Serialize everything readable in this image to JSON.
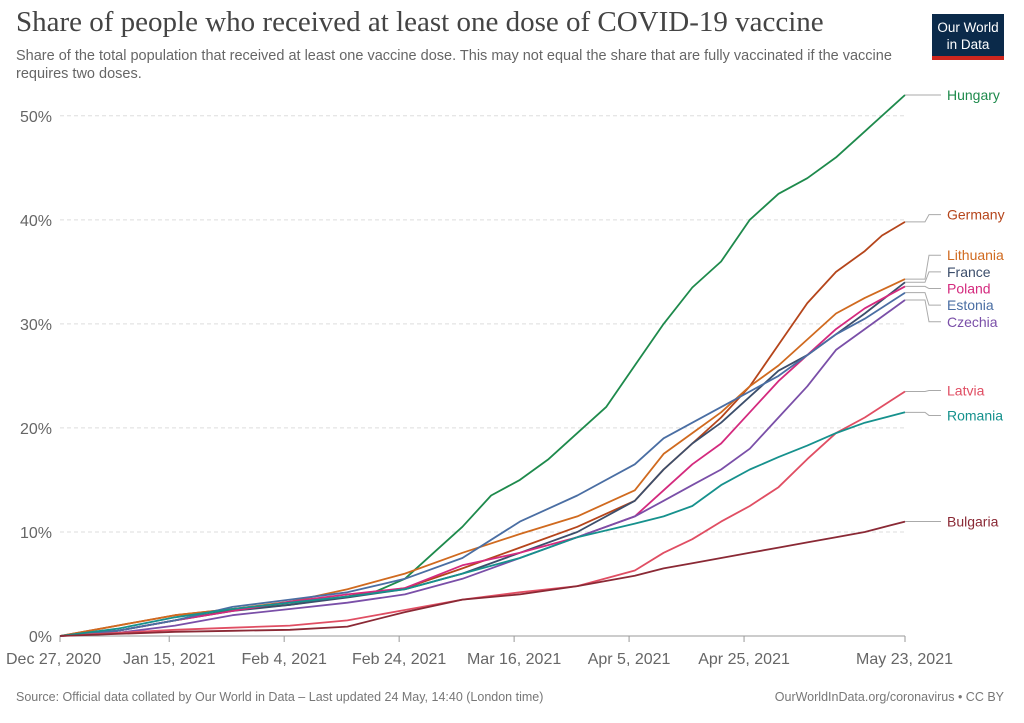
{
  "header": {
    "title": "Share of people who received at least one dose of COVID-19 vaccine",
    "subtitle": "Share of the total population that received at least one vaccine dose. This may not equal the share that are fully vaccinated if the vaccine requires two doses.",
    "logo_line1": "Our World",
    "logo_line2": "in Data"
  },
  "footer": {
    "source": "Source: Official data collated by Our World in Data – Last updated 24 May, 14:40 (London time)",
    "credit": "OurWorldInData.org/coronavirus • CC BY"
  },
  "chart_data": {
    "type": "line",
    "x_tick_labels": [
      "Dec 27, 2020",
      "Jan 15, 2021",
      "Feb 4, 2021",
      "Feb 24, 2021",
      "Mar 16, 2021",
      "Apr 5, 2021",
      "Apr 25, 2021",
      "May 23, 2021"
    ],
    "x_tick_days": [
      0,
      19,
      39,
      59,
      79,
      99,
      119,
      147
    ],
    "y_tick_labels": [
      "0%",
      "10%",
      "20%",
      "30%",
      "40%",
      "50%"
    ],
    "y_tick_values": [
      0,
      10,
      20,
      30,
      40,
      50
    ],
    "ylim": [
      0,
      52
    ],
    "grid": "horizontal dashed",
    "legend": "labels at line ends (right)",
    "series": [
      {
        "name": "Hungary",
        "color": "#1e8a4c",
        "label_y": 52,
        "x": [
          0,
          10,
          20,
          30,
          40,
          50,
          55,
          60,
          65,
          70,
          75,
          80,
          85,
          90,
          95,
          100,
          105,
          110,
          115,
          120,
          125,
          130,
          135,
          140,
          147
        ],
        "values": [
          0,
          0.5,
          1.5,
          2.5,
          3.0,
          3.8,
          4.3,
          5.5,
          8.0,
          10.5,
          13.5,
          15.0,
          17.0,
          19.5,
          22.0,
          26.0,
          30.0,
          33.5,
          36.0,
          40.0,
          42.5,
          44.0,
          46.0,
          48.5,
          52.0
        ]
      },
      {
        "name": "Germany",
        "color": "#b5451b",
        "label_y": 40.5,
        "x": [
          0,
          10,
          20,
          30,
          40,
          50,
          60,
          70,
          80,
          90,
          100,
          105,
          110,
          115,
          120,
          125,
          130,
          135,
          140,
          143,
          147
        ],
        "values": [
          0,
          1.0,
          2.0,
          2.6,
          3.2,
          3.8,
          4.6,
          6.5,
          8.5,
          10.5,
          13.0,
          16.0,
          18.5,
          21.0,
          24.0,
          28.0,
          32.0,
          35.0,
          37.0,
          38.5,
          39.8
        ]
      },
      {
        "name": "Lithuania",
        "color": "#d06a1f",
        "label_y": 36.6,
        "x": [
          0,
          10,
          20,
          30,
          40,
          50,
          60,
          70,
          80,
          90,
          100,
          105,
          110,
          115,
          120,
          125,
          130,
          135,
          140,
          147
        ],
        "values": [
          0,
          1.0,
          2.0,
          2.6,
          3.3,
          4.5,
          6.0,
          8.0,
          9.8,
          11.5,
          14.0,
          17.5,
          19.5,
          21.5,
          24.0,
          26.0,
          28.5,
          31.0,
          32.5,
          34.3
        ]
      },
      {
        "name": "France",
        "color": "#3c4e6b",
        "label_y": 35.0,
        "x": [
          0,
          10,
          20,
          30,
          40,
          50,
          60,
          70,
          80,
          90,
          100,
          105,
          110,
          115,
          120,
          125,
          130,
          135,
          140,
          147
        ],
        "values": [
          0,
          0.5,
          1.5,
          2.4,
          3.0,
          3.7,
          4.5,
          6.0,
          8.0,
          10.0,
          13.0,
          16.0,
          18.5,
          20.5,
          23.0,
          25.5,
          27.0,
          29.0,
          31.0,
          34.0
        ]
      },
      {
        "name": "Poland",
        "color": "#d42a7e",
        "label_y": 33.4,
        "x": [
          0,
          10,
          20,
          30,
          40,
          50,
          60,
          70,
          80,
          90,
          100,
          105,
          110,
          115,
          120,
          125,
          130,
          135,
          140,
          147
        ],
        "values": [
          0,
          0.5,
          1.5,
          2.4,
          3.3,
          4.0,
          4.6,
          6.8,
          8.0,
          9.5,
          11.5,
          14.0,
          16.5,
          18.5,
          21.5,
          24.5,
          27.0,
          29.5,
          31.5,
          33.6
        ]
      },
      {
        "name": "Estonia",
        "color": "#4a6ea3",
        "label_y": 31.8,
        "x": [
          0,
          10,
          20,
          30,
          40,
          50,
          60,
          70,
          80,
          90,
          100,
          105,
          110,
          115,
          120,
          125,
          130,
          135,
          140,
          147
        ],
        "values": [
          0,
          0.5,
          1.5,
          2.8,
          3.5,
          4.2,
          5.5,
          7.5,
          11.0,
          13.5,
          16.5,
          19.0,
          20.5,
          22.0,
          23.5,
          25.0,
          27.0,
          29.0,
          30.5,
          33.0
        ]
      },
      {
        "name": "Czechia",
        "color": "#7a4fa8",
        "label_y": 30.2,
        "x": [
          0,
          10,
          20,
          30,
          40,
          50,
          60,
          70,
          80,
          90,
          100,
          105,
          110,
          115,
          120,
          125,
          130,
          135,
          140,
          147
        ],
        "values": [
          0,
          0.3,
          1.0,
          2.0,
          2.6,
          3.2,
          4.0,
          5.5,
          7.5,
          9.5,
          11.5,
          13.0,
          14.5,
          16.0,
          18.0,
          21.0,
          24.0,
          27.5,
          29.5,
          32.3
        ]
      },
      {
        "name": "Latvia",
        "color": "#e04e63",
        "label_y": 23.6,
        "x": [
          0,
          10,
          20,
          30,
          40,
          50,
          60,
          70,
          80,
          90,
          100,
          105,
          110,
          115,
          120,
          125,
          130,
          135,
          140,
          147
        ],
        "values": [
          0,
          0.3,
          0.6,
          0.8,
          1.0,
          1.5,
          2.5,
          3.5,
          4.2,
          4.8,
          6.3,
          8.0,
          9.3,
          11.0,
          12.5,
          14.3,
          17.0,
          19.5,
          21.0,
          23.5
        ]
      },
      {
        "name": "Romania",
        "color": "#16918d",
        "label_y": 21.2,
        "x": [
          0,
          10,
          20,
          30,
          40,
          50,
          60,
          70,
          80,
          90,
          100,
          105,
          110,
          115,
          120,
          125,
          130,
          135,
          140,
          147
        ],
        "values": [
          0,
          0.7,
          1.8,
          2.6,
          3.2,
          3.8,
          4.5,
          6.0,
          7.5,
          9.5,
          10.8,
          11.5,
          12.5,
          14.5,
          16.0,
          17.2,
          18.3,
          19.5,
          20.5,
          21.5
        ]
      },
      {
        "name": "Bulgaria",
        "color": "#8a2935",
        "label_y": 11.0,
        "x": [
          0,
          10,
          20,
          30,
          40,
          50,
          60,
          70,
          80,
          90,
          100,
          105,
          110,
          115,
          120,
          125,
          130,
          135,
          140,
          147
        ],
        "values": [
          0,
          0.2,
          0.4,
          0.5,
          0.6,
          0.9,
          2.3,
          3.5,
          4.0,
          4.8,
          5.8,
          6.5,
          7.0,
          7.5,
          8.0,
          8.5,
          9.0,
          9.5,
          10.0,
          11.0
        ]
      }
    ]
  }
}
